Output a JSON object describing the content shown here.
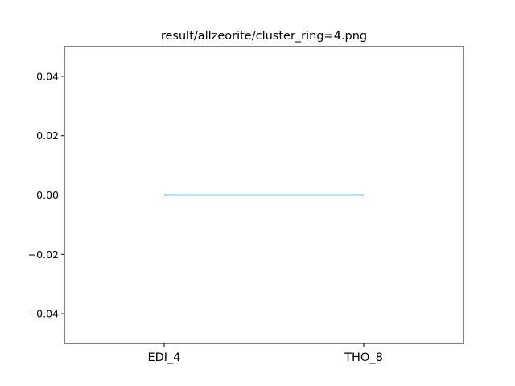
{
  "chart_data": {
    "type": "line",
    "title": "result/allzeorite/cluster_ring=4.png",
    "xlabel": "",
    "ylabel": "",
    "categories": [
      "EDI_4",
      "THO_8"
    ],
    "series": [
      {
        "values": [
          0.0,
          0.0
        ],
        "color": "#1f77b4"
      }
    ],
    "ylim": [
      -0.05,
      0.05
    ],
    "yticks": [
      0.04,
      0.02,
      0.0,
      -0.02,
      -0.04
    ],
    "ytick_labels": [
      "0.04",
      "0.02",
      "0.00",
      "−0.02",
      "−0.04"
    ],
    "grid": false,
    "legend": "none"
  }
}
